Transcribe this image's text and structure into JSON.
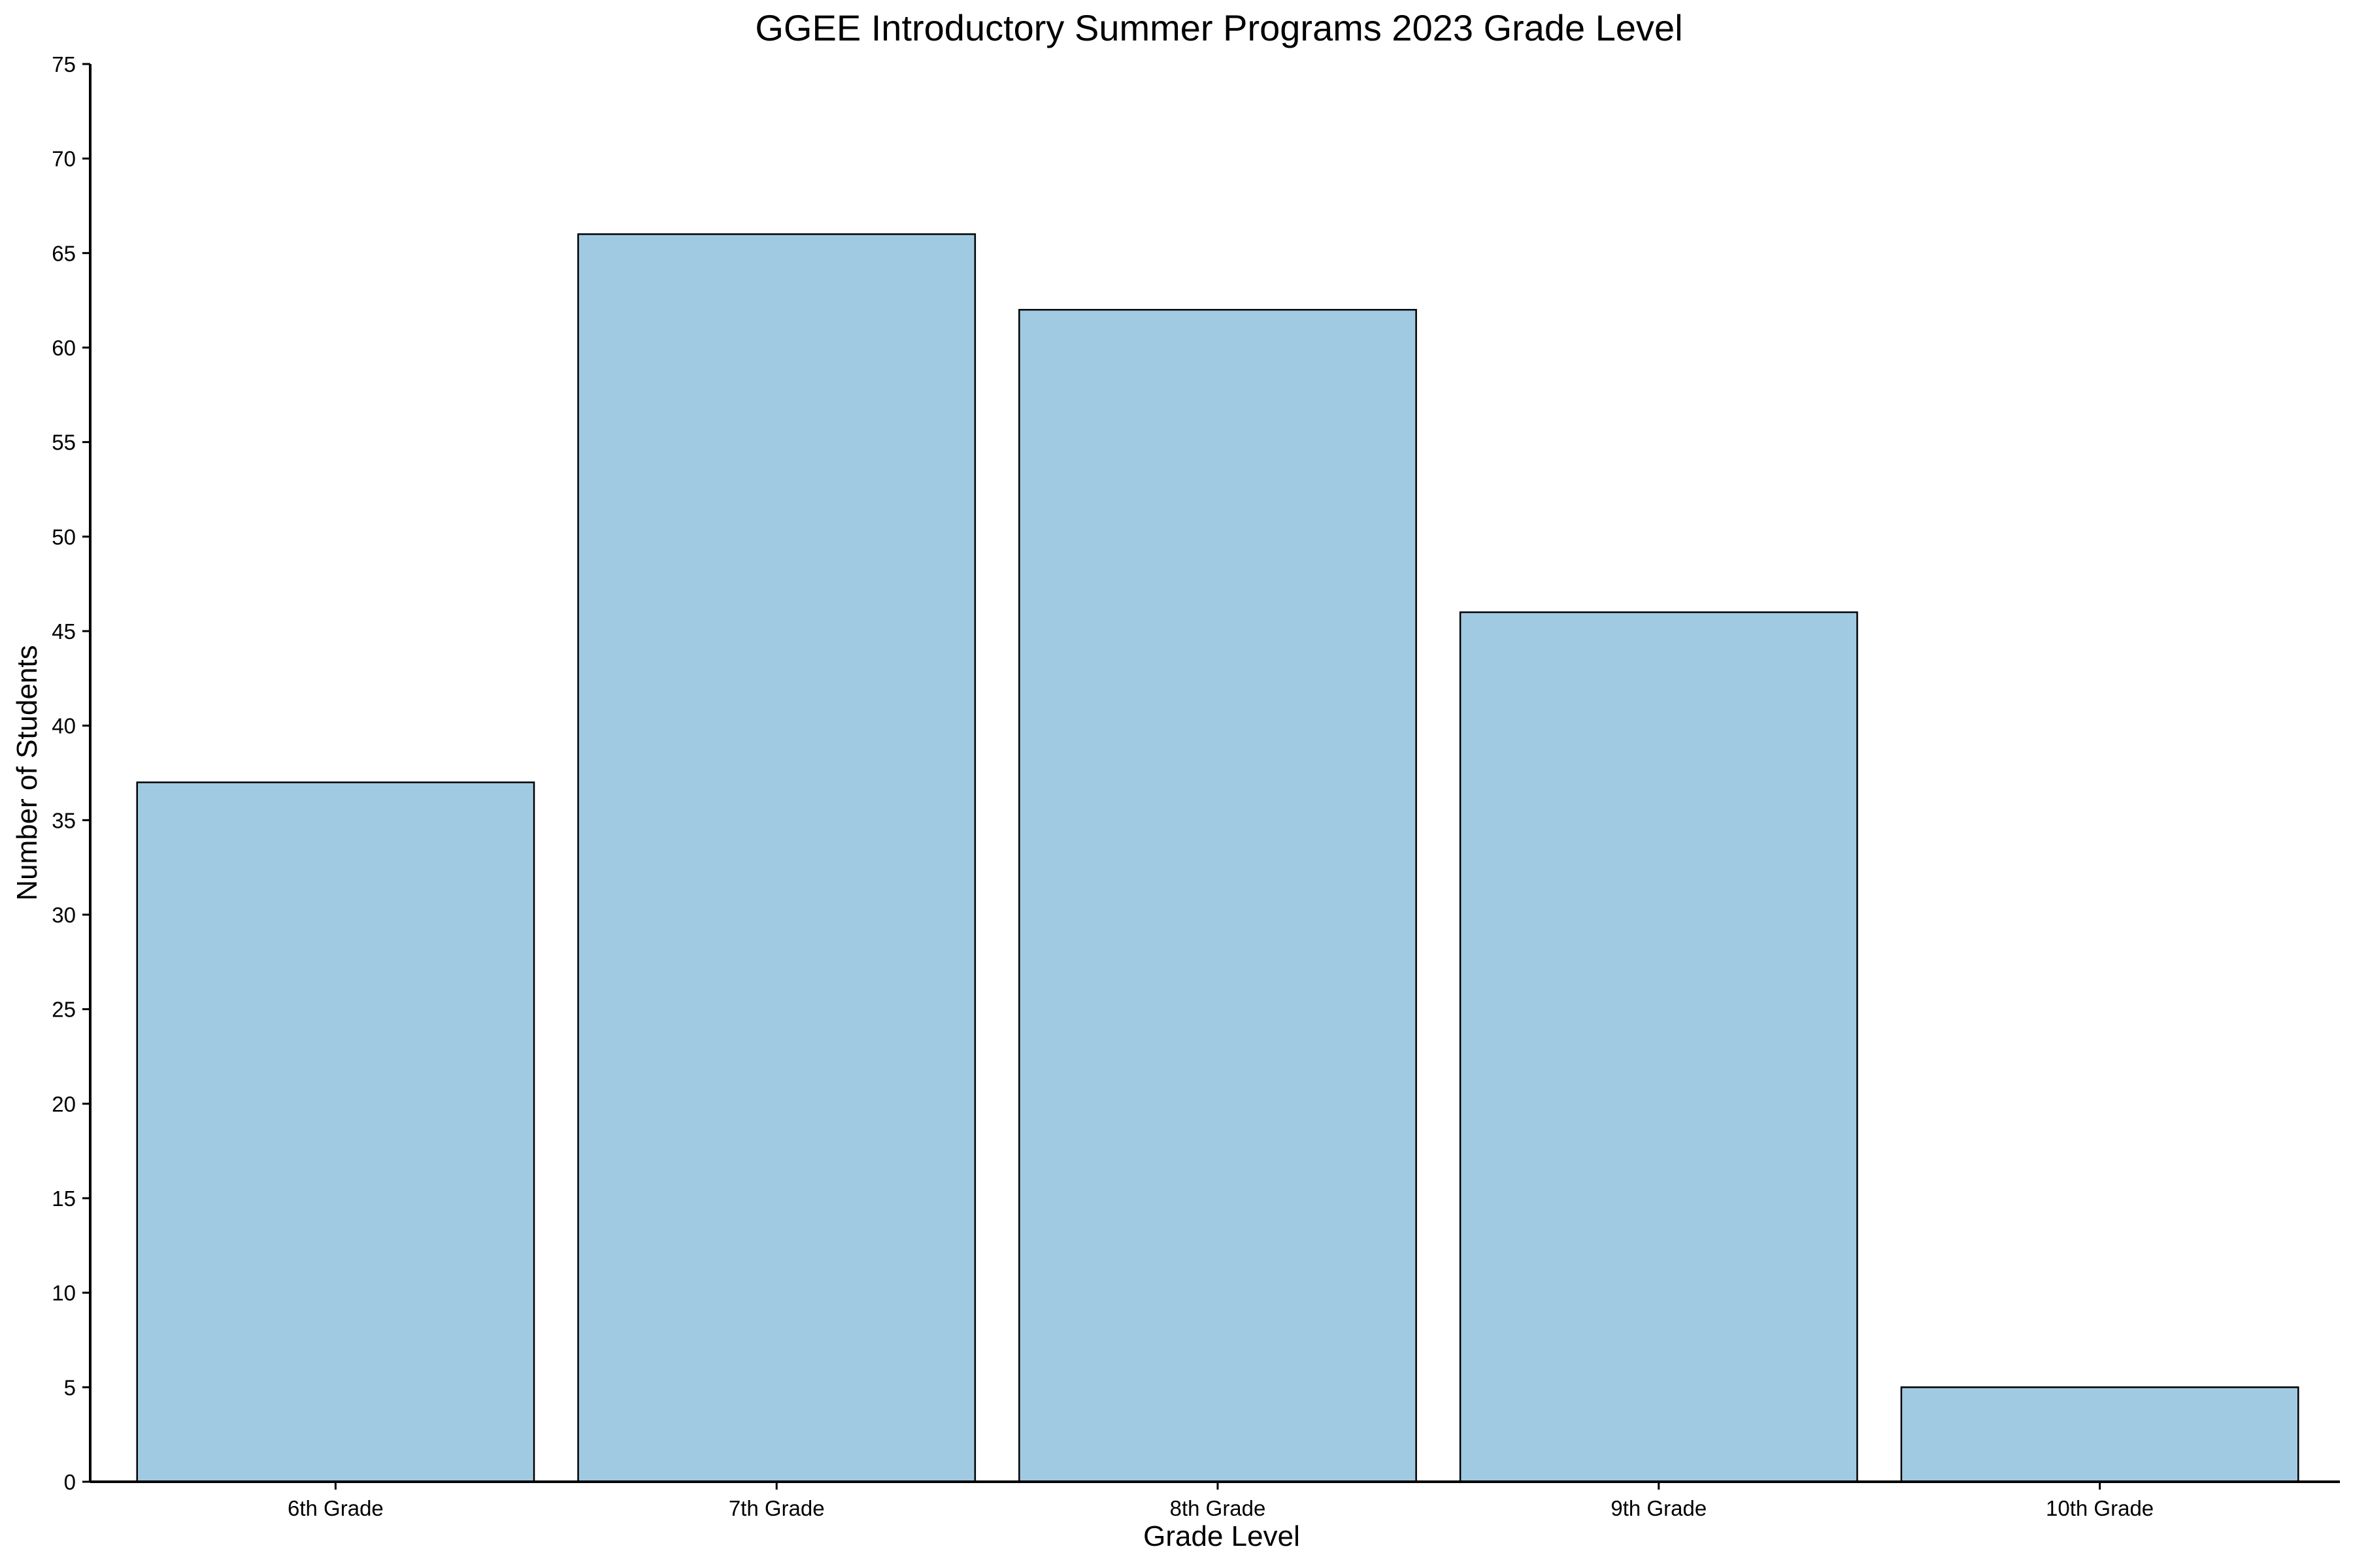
{
  "chart_data": {
    "type": "bar",
    "title": "GGEE Introductory Summer Programs 2023 Grade Level",
    "xlabel": "Grade Level",
    "ylabel": "Number of Students",
    "categories": [
      "6th Grade",
      "7th Grade",
      "8th Grade",
      "9th Grade",
      "10th Grade"
    ],
    "values": [
      37,
      66,
      62,
      46,
      5
    ],
    "ylim": [
      0,
      75
    ],
    "yticks": [
      0,
      5,
      10,
      15,
      20,
      25,
      30,
      35,
      40,
      45,
      50,
      55,
      60,
      65,
      70,
      75
    ],
    "grid": false,
    "legend": "none",
    "bar_color": "#a0cae2",
    "edge_color": "#000000"
  }
}
